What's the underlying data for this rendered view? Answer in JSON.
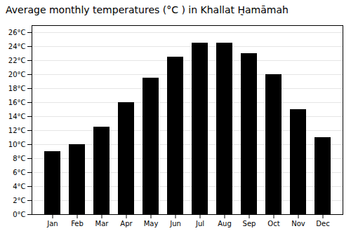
{
  "chart_data": {
    "type": "bar",
    "title": "Average monthly temperatures (°C ) in Khallat Ḥ̣amāmah",
    "categories": [
      "Jan",
      "Feb",
      "Mar",
      "Apr",
      "May",
      "Jun",
      "Jul",
      "Aug",
      "Sep",
      "Oct",
      "Nov",
      "Dec"
    ],
    "values": [
      9,
      10,
      12.5,
      16,
      19.5,
      22.5,
      24.5,
      24.5,
      23,
      20,
      15,
      11
    ],
    "ylim": [
      0,
      27
    ],
    "yticks": [
      {
        "value": 0,
        "label": "0°C"
      },
      {
        "value": 2,
        "label": "2°C"
      },
      {
        "value": 4,
        "label": "4°C"
      },
      {
        "value": 6,
        "label": "6°C"
      },
      {
        "value": 8,
        "label": "8°C"
      },
      {
        "value": 10,
        "label": "10°C"
      },
      {
        "value": 12,
        "label": "12°C"
      },
      {
        "value": 14,
        "label": "14°C"
      },
      {
        "value": 16,
        "label": "16°C"
      },
      {
        "value": 18,
        "label": "18°C"
      },
      {
        "value": 20,
        "label": "20°C"
      },
      {
        "value": 22,
        "label": "22°C"
      },
      {
        "value": 24,
        "label": "24°C"
      },
      {
        "value": 26,
        "label": "26°C"
      }
    ],
    "grid": true
  }
}
